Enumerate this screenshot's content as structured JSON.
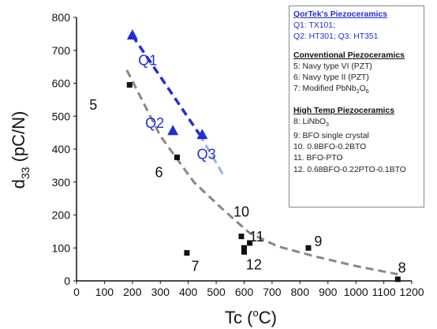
{
  "chart_data": {
    "type": "scatter",
    "xlabel": "Tc (°C)",
    "ylabel": "d33 (pC/N)",
    "xlim": [
      0,
      1200
    ],
    "ylim": [
      0,
      800
    ],
    "xticks": [
      "0",
      "100",
      "200",
      "300",
      "400",
      "500",
      "600",
      "700",
      "800",
      "900",
      "1000",
      "1100",
      "1200"
    ],
    "yticks": [
      "0",
      "100",
      "200",
      "300",
      "400",
      "500",
      "600",
      "700",
      "800"
    ],
    "series": [
      {
        "name": "QorTek's Piezoceramics",
        "marker": "triangle",
        "color": "#1f2fd6",
        "points": [
          {
            "label": "Q1",
            "x": 200,
            "y": 745
          },
          {
            "label": "Q2",
            "x": 345,
            "y": 455
          },
          {
            "label": "Q3",
            "x": 450,
            "y": 443
          }
        ]
      },
      {
        "name": "Conventional / High Temp Piezoceramics",
        "marker": "square",
        "color": "#111111",
        "points": [
          {
            "label": "5",
            "x": 190,
            "y": 595
          },
          {
            "label": "6",
            "x": 360,
            "y": 375
          },
          {
            "label": "7",
            "x": 395,
            "y": 85
          },
          {
            "label": "10",
            "x": 590,
            "y": 135
          },
          {
            "label": "11",
            "x": 620,
            "y": 115
          },
          {
            "label": "12a",
            "x": 600,
            "y": 100
          },
          {
            "label": "12b",
            "x": 600,
            "y": 88
          },
          {
            "label": "9",
            "x": 830,
            "y": 100
          },
          {
            "label": "8",
            "x": 1150,
            "y": 5
          }
        ]
      }
    ],
    "point_labels": [
      {
        "text": "5",
        "x": 60,
        "y": 520,
        "color": "black"
      },
      {
        "text": "6",
        "x": 295,
        "y": 315,
        "color": "black"
      },
      {
        "text": "7",
        "x": 425,
        "y": 30,
        "color": "black"
      },
      {
        "text": "10",
        "x": 590,
        "y": 195,
        "color": "black"
      },
      {
        "text": "11",
        "x": 645,
        "y": 120,
        "color": "black"
      },
      {
        "text": "12",
        "x": 635,
        "y": 35,
        "color": "black"
      },
      {
        "text": "9",
        "x": 865,
        "y": 105,
        "color": "black"
      },
      {
        "text": "8",
        "x": 1165,
        "y": 25,
        "color": "black"
      },
      {
        "text": "Q1",
        "x": 255,
        "y": 655,
        "color": "blue"
      },
      {
        "text": "Q2",
        "x": 280,
        "y": 465,
        "color": "blue"
      },
      {
        "text": "Q3",
        "x": 465,
        "y": 370,
        "color": "blue"
      }
    ],
    "trend_lines": [
      {
        "style": "dashed",
        "color": "#1f2fd6",
        "points": [
          [
            200,
            745
          ],
          [
            440,
            445
          ]
        ]
      },
      {
        "style": "dashed",
        "color": "#8fb3e0",
        "points": [
          [
            440,
            445
          ],
          [
            530,
            315
          ]
        ]
      },
      {
        "style": "dashed",
        "color": "#888888",
        "points": [
          [
            180,
            640
          ],
          [
            300,
            440
          ],
          [
            420,
            300
          ],
          [
            520,
            220
          ],
          [
            620,
            145
          ],
          [
            720,
            105
          ],
          [
            850,
            75
          ],
          [
            1000,
            45
          ],
          [
            1150,
            20
          ]
        ]
      }
    ],
    "grid": false,
    "legend": {
      "placement": "top-right",
      "sections": [
        {
          "title": "QorTek's Piezoceramics",
          "title_color": "blue",
          "lines": [
            "Q1: TX101;",
            "Q2: HT301; Q3: HT351"
          ],
          "line_color": "blue"
        },
        {
          "title": "Conventional Piezoceramics",
          "title_color": "black",
          "lines": [
            "5: Navy type VI (PZT)",
            "6: Navy type II (PZT)",
            "7: Modified PbNb2O6"
          ],
          "line_color": "black"
        },
        {
          "title": "High Temp Piezoceramics",
          "title_color": "black",
          "lines": [
            "8: LiNbO3",
            "9: BFO single crystal",
            "10. 0.8BFO-0.2BTO",
            "11. BFO-PTO",
            "12. 0.68BFO-0.22PTO-0.1BTO"
          ],
          "line_color": "black"
        }
      ]
    }
  },
  "axis_text": {
    "x_main": "Tc (",
    "x_sup": "o",
    "x_end": "C)",
    "y_main": "d",
    "y_sub": "33",
    "y_end": " (pC/N)"
  },
  "legend_text": {
    "s1_title": "QorTek's Piezoceramics",
    "s1_l1": "Q1: TX101;",
    "s1_l2": "Q2: HT301; Q3: HT351",
    "s2_title": "Conventional Piezoceramics",
    "s2_l1": "5: Navy type VI (PZT)",
    "s2_l2": "6: Navy type II (PZT)",
    "s2_l3_a": "7: Modified PbNb",
    "s2_l3_sub1": "2",
    "s2_l3_b": "O",
    "s2_l3_sub2": "6",
    "s3_title": "High Temp Piezoceramics",
    "s3_l1_a": "8: LiNbO",
    "s3_l1_sub": "3",
    "s3_l2": "9: BFO single crystal",
    "s3_l3": "10. 0.8BFO-0.2BTO",
    "s3_l4": "11. BFO-PTO",
    "s3_l5": "12. 0.68BFO-0.22PTO-0.1BTO"
  }
}
